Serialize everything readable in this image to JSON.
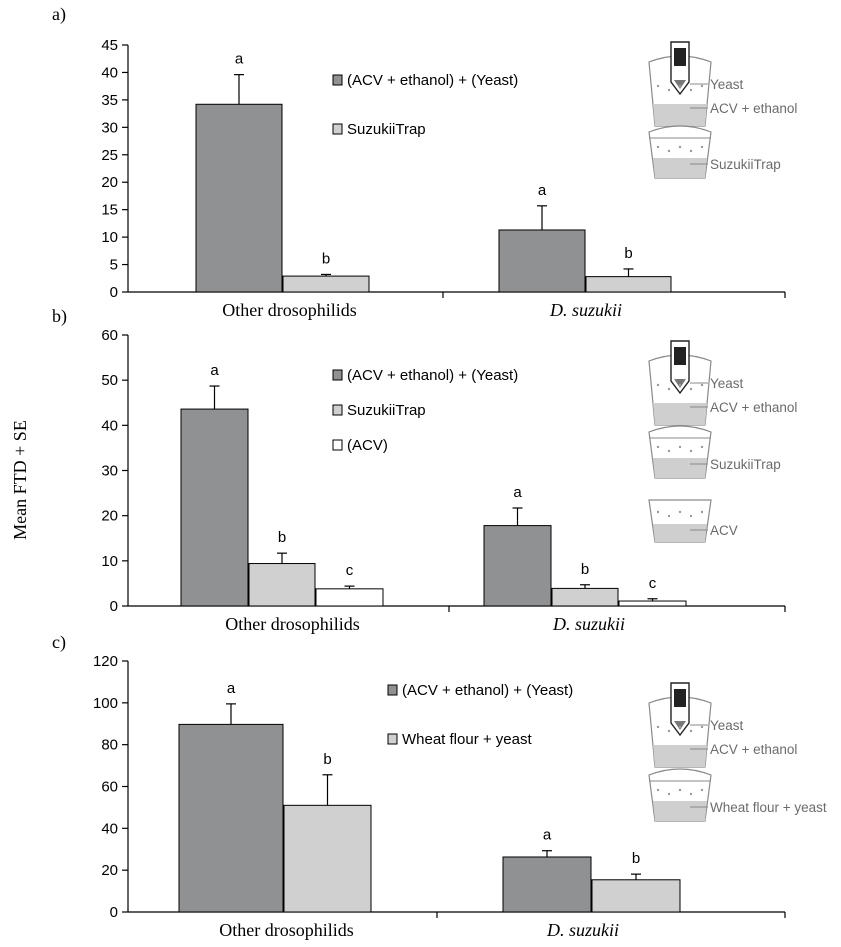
{
  "figure": {
    "ylabel": "Mean FTD + SE"
  },
  "colors": {
    "dark_bar": "#8f9192",
    "light_bar": "#d0d0d0",
    "white_bar": "#ffffff",
    "outline": "#000000",
    "icon_stroke": "#8a8a8a",
    "icon_liquid": "#cfcfcf"
  },
  "chart_data": [
    {
      "panel_label": "a)",
      "type": "bar",
      "categories": [
        "Other drosophilids",
        "D. suzukii"
      ],
      "category_italic": [
        false,
        true
      ],
      "ylim": [
        0,
        45
      ],
      "yticks": [
        0,
        5,
        10,
        15,
        20,
        25,
        30,
        35,
        40,
        45
      ],
      "legend_placement": "upper-right",
      "series": [
        {
          "name": "(ACV + ethanol) + (Yeast)",
          "color_key": "dark_bar",
          "values": [
            34.2,
            11.3
          ],
          "errors": [
            5.4,
            4.4
          ],
          "letters": [
            "a",
            "a"
          ]
        },
        {
          "name": "SuzukiiTrap",
          "color_key": "light_bar",
          "values": [
            2.9,
            2.8
          ],
          "errors": [
            0.3,
            1.4
          ],
          "letters": [
            "b",
            "b"
          ]
        }
      ],
      "trap_icons": [
        {
          "style": "tube",
          "labels": [
            "Yeast",
            "ACV + ethanol"
          ]
        },
        {
          "style": "cup",
          "labels": [
            "SuzukiiTrap"
          ]
        }
      ]
    },
    {
      "panel_label": "b)",
      "type": "bar",
      "categories": [
        "Other drosophilids",
        "D. suzukii"
      ],
      "category_italic": [
        false,
        true
      ],
      "ylim": [
        0,
        60
      ],
      "yticks": [
        0,
        10,
        20,
        30,
        40,
        50,
        60
      ],
      "legend_placement": "upper-right",
      "series": [
        {
          "name": "(ACV + ethanol) + (Yeast)",
          "color_key": "dark_bar",
          "values": [
            43.6,
            17.8
          ],
          "errors": [
            5.1,
            3.9
          ],
          "letters": [
            "a",
            "a"
          ]
        },
        {
          "name": "SuzukiiTrap",
          "color_key": "light_bar",
          "values": [
            9.4,
            3.9
          ],
          "errors": [
            2.3,
            0.8
          ],
          "letters": [
            "b",
            "b"
          ]
        },
        {
          "name": "(ACV)",
          "color_key": "white_bar",
          "values": [
            3.8,
            1.1
          ],
          "errors": [
            0.6,
            0.5
          ],
          "letters": [
            "c",
            "c"
          ]
        }
      ],
      "trap_icons": [
        {
          "style": "tube",
          "labels": [
            "Yeast",
            "ACV + ethanol"
          ]
        },
        {
          "style": "cup",
          "labels": [
            "SuzukiiTrap"
          ]
        },
        {
          "style": "cup-small",
          "labels": [
            "ACV"
          ]
        }
      ]
    },
    {
      "panel_label": "c)",
      "type": "bar",
      "categories": [
        "Other drosophilids",
        "D. suzukii"
      ],
      "category_italic": [
        false,
        true
      ],
      "ylim": [
        0,
        120
      ],
      "yticks": [
        0,
        20,
        40,
        60,
        80,
        100,
        120
      ],
      "legend_placement": "upper-right",
      "series": [
        {
          "name": "(ACV + ethanol) + (Yeast)",
          "color_key": "dark_bar",
          "values": [
            89.7,
            26.3
          ],
          "errors": [
            9.8,
            3.0
          ],
          "letters": [
            "a",
            "a"
          ]
        },
        {
          "name": "Wheat flour + yeast",
          "color_key": "light_bar",
          "values": [
            51.0,
            15.4
          ],
          "errors": [
            14.6,
            2.7
          ],
          "letters": [
            "b",
            "b"
          ]
        }
      ],
      "trap_icons": [
        {
          "style": "tube",
          "labels": [
            "Yeast",
            "ACV + ethanol"
          ]
        },
        {
          "style": "cup",
          "labels": [
            "Wheat flour + yeast"
          ]
        }
      ]
    }
  ]
}
